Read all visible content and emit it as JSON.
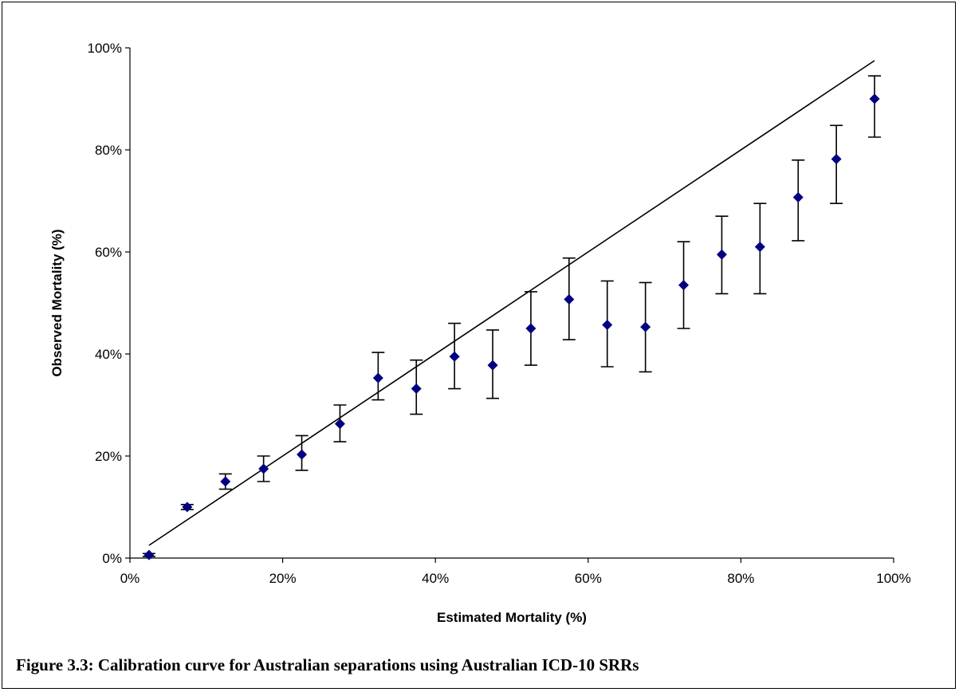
{
  "caption": "Figure 3.3: Calibration curve for Australian separations using Australian ICD-10 SRRs",
  "colors": {
    "marker": "#000080",
    "line": "#000000",
    "errorbar": "#000000"
  },
  "chart_data": {
    "type": "scatter",
    "xlabel": "Estimated Mortality (%)",
    "ylabel": "Observed Mortality (%)",
    "xlim": [
      0,
      100
    ],
    "ylim": [
      0,
      100
    ],
    "x_ticks": [
      0,
      20,
      40,
      60,
      80,
      100
    ],
    "y_ticks": [
      0,
      20,
      40,
      60,
      80,
      100
    ],
    "x_tick_labels": [
      "0%",
      "20%",
      "40%",
      "60%",
      "80%",
      "100%"
    ],
    "y_tick_labels": [
      "0%",
      "20%",
      "40%",
      "60%",
      "80%",
      "100%"
    ],
    "grid": false,
    "reference_line": {
      "x": [
        2.5,
        97.5
      ],
      "y": [
        2.5,
        97.5
      ]
    },
    "points": [
      {
        "x": 2.5,
        "y": 0.6,
        "lo": 0.3,
        "hi": 0.9
      },
      {
        "x": 7.5,
        "y": 10.0,
        "lo": 9.5,
        "hi": 10.5
      },
      {
        "x": 12.5,
        "y": 15.0,
        "lo": 13.5,
        "hi": 16.5
      },
      {
        "x": 17.5,
        "y": 17.5,
        "lo": 15.0,
        "hi": 20.0
      },
      {
        "x": 22.5,
        "y": 20.3,
        "lo": 17.2,
        "hi": 24.0
      },
      {
        "x": 27.5,
        "y": 26.3,
        "lo": 22.8,
        "hi": 30.0
      },
      {
        "x": 32.5,
        "y": 35.3,
        "lo": 31.0,
        "hi": 40.3
      },
      {
        "x": 37.5,
        "y": 33.2,
        "lo": 28.2,
        "hi": 38.8
      },
      {
        "x": 42.5,
        "y": 39.5,
        "lo": 33.2,
        "hi": 46.0
      },
      {
        "x": 47.5,
        "y": 37.8,
        "lo": 31.3,
        "hi": 44.7
      },
      {
        "x": 52.5,
        "y": 45.0,
        "lo": 37.8,
        "hi": 52.2
      },
      {
        "x": 57.5,
        "y": 50.7,
        "lo": 42.8,
        "hi": 58.8
      },
      {
        "x": 62.5,
        "y": 45.7,
        "lo": 37.5,
        "hi": 54.3
      },
      {
        "x": 67.5,
        "y": 45.3,
        "lo": 36.5,
        "hi": 54.0
      },
      {
        "x": 72.5,
        "y": 53.5,
        "lo": 45.0,
        "hi": 62.0
      },
      {
        "x": 77.5,
        "y": 59.5,
        "lo": 51.8,
        "hi": 67.0
      },
      {
        "x": 82.5,
        "y": 61.0,
        "lo": 51.8,
        "hi": 69.5
      },
      {
        "x": 87.5,
        "y": 70.7,
        "lo": 62.2,
        "hi": 78.0
      },
      {
        "x": 92.5,
        "y": 78.2,
        "lo": 69.5,
        "hi": 84.8
      },
      {
        "x": 97.5,
        "y": 90.0,
        "lo": 82.5,
        "hi": 94.5
      }
    ]
  }
}
